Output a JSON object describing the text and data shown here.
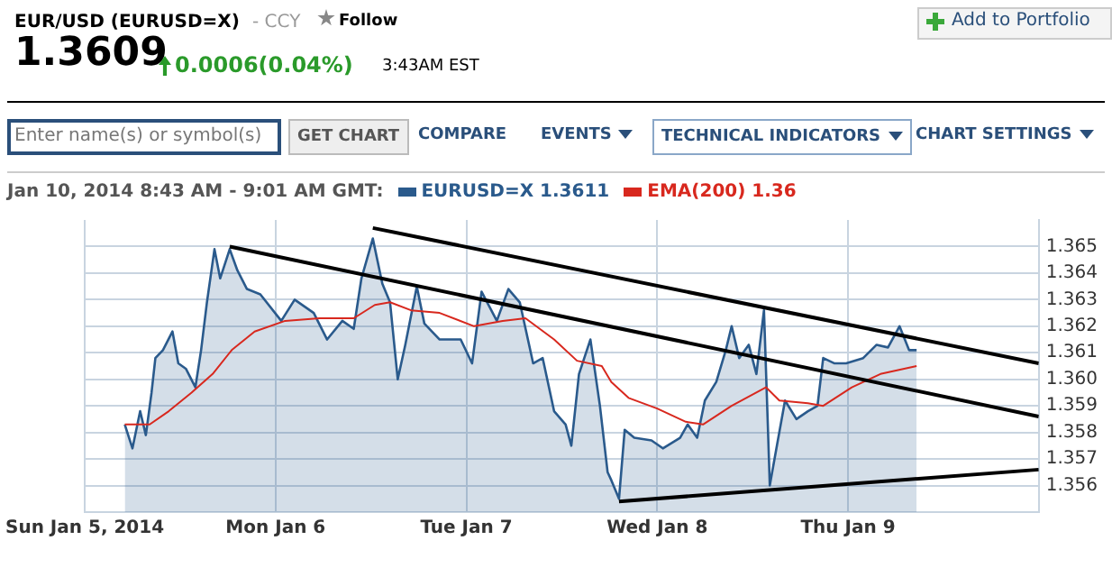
{
  "chart_data": {
    "type": "area",
    "title": "EUR/USD (EURUSD=X)",
    "subtitle": "Jan 10, 2014 8:43 AM - 9:01 AM GMT:",
    "annotations": [
      "- CCY",
      "Follow",
      "1.3609",
      "0.0006(0.04%)",
      "3:43AM EST",
      "Add to Portfolio",
      "Enter name(s) or symbol(s)",
      "GET CHART",
      "COMPARE",
      "EVENTS",
      "TECHNICAL INDICATORS",
      "CHART SETTINGS"
    ],
    "xlim": [
      "2014-01-05T00:00",
      "2014-01-10T00:00"
    ],
    "xticks": [
      {
        "value": "2014-01-05",
        "label": "Sun Jan 5, 2014"
      },
      {
        "value": "2014-01-06",
        "label": "Mon Jan 6"
      },
      {
        "value": "2014-01-07",
        "label": "Tue Jan 7"
      },
      {
        "value": "2014-01-08",
        "label": "Wed Jan 8"
      },
      {
        "value": "2014-01-09",
        "label": "Thu Jan 9"
      }
    ],
    "ylim": [
      1.355,
      1.366
    ],
    "yticks": [
      1.356,
      1.357,
      1.358,
      1.359,
      {
        "value": 1.36,
        "label": "1.360"
      },
      1.361,
      1.362,
      1.363,
      1.364,
      1.365
    ],
    "grid": true,
    "legend": "top left",
    "marker": "none",
    "line_style": "solid",
    "series": [
      {
        "name": "EURUSD=X 1.3611",
        "color": "#2a5a8c",
        "x": [
          "2014-01-05T05:02",
          "2014-01-05T06:00",
          "2014-01-05T06:58",
          "2014-01-05T07:41",
          "2014-01-05T08:24",
          "2014-01-05T08:53",
          "2014-01-05T09:50",
          "2014-01-05T11:02",
          "2014-01-05T11:46",
          "2014-01-05T12:43",
          "2014-01-05T13:55",
          "2014-01-05T14:38",
          "2014-01-05T15:22",
          "2014-01-05T16:19",
          "2014-01-05T17:02",
          "2014-01-05T18:14",
          "2014-01-05T19:12",
          "2014-01-05T20:24",
          "2014-01-05T22:05",
          "2014-01-06T00:43",
          "2014-01-06T02:24",
          "2014-01-06T04:48",
          "2014-01-06T06:29",
          "2014-01-06T08:24",
          "2014-01-06T09:50",
          "2014-01-06T10:48",
          "2014-01-06T12:14",
          "2014-01-06T13:26",
          "2014-01-06T14:24",
          "2014-01-06T15:22",
          "2014-01-06T16:19",
          "2014-01-06T17:46",
          "2014-01-06T18:43",
          "2014-01-06T20:38",
          "2014-01-06T23:17",
          "2014-01-07T00:43",
          "2014-01-07T01:55",
          "2014-01-07T03:50",
          "2014-01-07T05:17",
          "2014-01-07T06:43",
          "2014-01-07T08:24",
          "2014-01-07T09:36",
          "2014-01-07T11:02",
          "2014-01-07T12:29",
          "2014-01-07T13:12",
          "2014-01-07T14:10",
          "2014-01-07T15:36",
          "2014-01-07T16:48",
          "2014-01-07T17:46",
          "2014-01-07T18:14",
          "2014-01-07T19:12",
          "2014-01-07T19:55",
          "2014-01-07T21:07",
          "2014-01-07T23:17",
          "2014-01-08T00:43",
          "2014-01-08T02:53",
          "2014-01-08T03:50",
          "2014-01-08T05:02",
          "2014-01-08T06:00",
          "2014-01-08T07:26",
          "2014-01-08T08:38",
          "2014-01-08T09:22",
          "2014-01-08T10:19",
          "2014-01-08T11:31",
          "2014-01-08T12:29",
          "2014-01-08T13:26",
          "2014-01-08T13:55",
          "2014-01-08T14:10",
          "2014-01-08T15:07",
          "2014-01-08T16:05",
          "2014-01-08T17:31",
          "2014-01-08T18:58",
          "2014-01-08T20:10",
          "2014-01-08T20:53",
          "2014-01-08T22:19",
          "2014-01-08T23:46",
          "2014-01-09T01:55",
          "2014-01-09T03:36",
          "2014-01-09T05:02",
          "2014-01-09T06:29",
          "2014-01-09T07:41",
          "2014-01-09T08:38"
        ],
        "values": [
          1.3583,
          1.3574,
          1.3588,
          1.3579,
          1.3595,
          1.3608,
          1.3611,
          1.3618,
          1.3606,
          1.3604,
          1.3597,
          1.3611,
          1.3629,
          1.3649,
          1.3638,
          1.3649,
          1.3641,
          1.3634,
          1.3632,
          1.3622,
          1.363,
          1.3625,
          1.3615,
          1.3622,
          1.3619,
          1.3638,
          1.3653,
          1.3636,
          1.3629,
          1.36,
          1.3613,
          1.3635,
          1.3621,
          1.3615,
          1.3615,
          1.3606,
          1.3633,
          1.3622,
          1.3634,
          1.3629,
          1.3606,
          1.3608,
          1.3588,
          1.3583,
          1.3575,
          1.3602,
          1.3615,
          1.359,
          1.3565,
          1.3562,
          1.3555,
          1.3581,
          1.3578,
          1.3577,
          1.3574,
          1.3578,
          1.3583,
          1.3578,
          1.3592,
          1.3599,
          1.3611,
          1.362,
          1.3608,
          1.3613,
          1.3602,
          1.3626,
          1.3583,
          1.356,
          1.3576,
          1.3592,
          1.3585,
          1.3588,
          1.359,
          1.3608,
          1.3606,
          1.3606,
          1.3608,
          1.3613,
          1.3612,
          1.362,
          1.3611,
          1.3611
        ]
      },
      {
        "name": "EMA(200) 1.36",
        "type": "line",
        "color": "#d8281e",
        "x": [
          "2014-01-05T05:02",
          "2014-01-05T08:10",
          "2014-01-05T10:34",
          "2014-01-05T13:26",
          "2014-01-05T16:05",
          "2014-01-05T18:29",
          "2014-01-05T21:22",
          "2014-01-06T01:12",
          "2014-01-06T05:31",
          "2014-01-06T09:50",
          "2014-01-06T12:29",
          "2014-01-06T14:24",
          "2014-01-06T17:02",
          "2014-01-06T20:38",
          "2014-01-07T00:58",
          "2014-01-07T04:34",
          "2014-01-07T07:26",
          "2014-01-07T11:02",
          "2014-01-07T13:55",
          "2014-01-07T17:02",
          "2014-01-07T18:14",
          "2014-01-07T20:24",
          "2014-01-08T00:00",
          "2014-01-08T03:36",
          "2014-01-08T05:46",
          "2014-01-08T09:22",
          "2014-01-08T13:41",
          "2014-01-08T15:22",
          "2014-01-08T18:58",
          "2014-01-08T20:53",
          "2014-01-09T00:29",
          "2014-01-09T04:05",
          "2014-01-09T08:38"
        ],
        "values": [
          1.3583,
          1.3583,
          1.3588,
          1.3595,
          1.3602,
          1.3611,
          1.3618,
          1.3622,
          1.3623,
          1.3623,
          1.3628,
          1.3629,
          1.3626,
          1.3625,
          1.362,
          1.3622,
          1.3623,
          1.3615,
          1.3607,
          1.3605,
          1.3599,
          1.3593,
          1.3589,
          1.3584,
          1.3583,
          1.359,
          1.3597,
          1.3592,
          1.3591,
          1.359,
          1.3597,
          1.3602,
          1.3605
        ]
      },
      {
        "type": "line",
        "color": "#000000",
        "x": [
          "2014-01-05T18:14",
          "2014-01-10T00:00"
        ],
        "values": [
          1.365,
          1.3586
        ]
      },
      {
        "type": "line",
        "color": "#000000",
        "x": [
          "2014-01-06T12:14",
          "2014-01-10T00:00"
        ],
        "values": [
          1.3657,
          1.3606
        ]
      },
      {
        "type": "line",
        "color": "#000000",
        "x": [
          "2014-01-07T19:12",
          "2014-01-10T00:00"
        ],
        "values": [
          1.3554,
          1.3566
        ]
      }
    ]
  }
}
